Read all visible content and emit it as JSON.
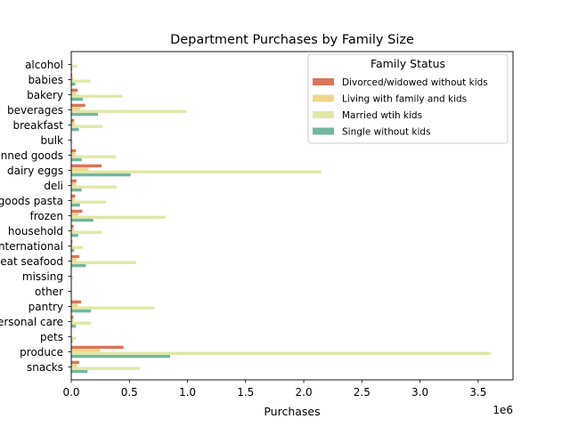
{
  "chart_data": {
    "type": "bar",
    "orientation": "horizontal",
    "title": "Department Purchases by Family Size",
    "xlabel": "Purchases",
    "ylabel": "",
    "x_scale_note": "1e6",
    "xlim": [
      0,
      3800000
    ],
    "x_ticks": [
      0,
      500000,
      1000000,
      1500000,
      2000000,
      2500000,
      3000000,
      3500000
    ],
    "x_tick_labels": [
      "0.0",
      "0.5",
      "1.0",
      "1.5",
      "2.0",
      "2.5",
      "3.0",
      "3.5"
    ],
    "grid": false,
    "legend": {
      "title": "Family Status",
      "placement": "top-right"
    },
    "categories": [
      "alcohol",
      "babies",
      "bakery",
      "beverages",
      "breakfast",
      "bulk",
      "canned goods",
      "dairy eggs",
      "deli",
      "dry goods pasta",
      "frozen",
      "household",
      "international",
      "meat seafood",
      "missing",
      "other",
      "pantry",
      "personal care",
      "pets",
      "produce",
      "snacks"
    ],
    "series": [
      {
        "name": "Divorced/widowed without kids",
        "color": "#d9755a",
        "values": [
          3000,
          8000,
          55000,
          120000,
          25000,
          1500,
          40000,
          260000,
          45000,
          35000,
          95000,
          20000,
          10000,
          70000,
          2000,
          1500,
          85000,
          18000,
          4000,
          450000,
          70000
        ]
      },
      {
        "name": "Living with family and kids",
        "color": "#f0d58c",
        "values": [
          5000,
          18000,
          40000,
          80000,
          30000,
          2000,
          35000,
          150000,
          40000,
          30000,
          60000,
          25000,
          10000,
          45000,
          2000,
          1500,
          55000,
          20000,
          4000,
          250000,
          50000
        ]
      },
      {
        "name": "Married wtih kids",
        "color": "#dfe8a6",
        "values": [
          50000,
          165000,
          440000,
          990000,
          270000,
          12000,
          385000,
          2150000,
          390000,
          300000,
          810000,
          265000,
          100000,
          555000,
          14000,
          10000,
          715000,
          170000,
          40000,
          3610000,
          590000
        ]
      },
      {
        "name": "Single without kids",
        "color": "#74b69e",
        "values": [
          8000,
          35000,
          100000,
          230000,
          65000,
          3000,
          90000,
          510000,
          90000,
          75000,
          190000,
          60000,
          25000,
          125000,
          3000,
          2500,
          170000,
          40000,
          10000,
          850000,
          140000
        ]
      }
    ]
  }
}
